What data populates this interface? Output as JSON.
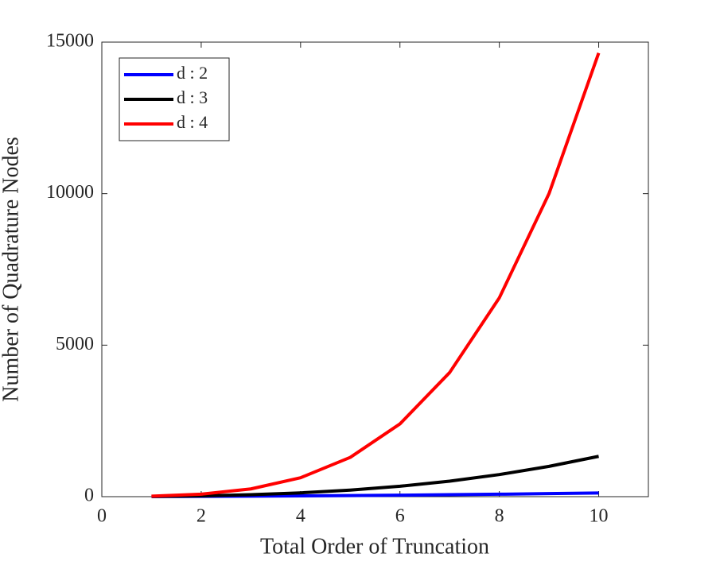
{
  "chart_data": {
    "type": "line",
    "x_label": "Total Order of Truncation",
    "y_label": "Number of Quadrature Nodes",
    "x": [
      1,
      2,
      3,
      4,
      5,
      6,
      7,
      8,
      9,
      10
    ],
    "series": [
      {
        "name": "d : 2",
        "color": "#0000ff",
        "values": [
          4,
          9,
          16,
          25,
          36,
          49,
          64,
          81,
          100,
          121
        ]
      },
      {
        "name": "d : 3",
        "color": "#000000",
        "values": [
          8,
          27,
          64,
          125,
          216,
          343,
          512,
          729,
          1000,
          1331
        ]
      },
      {
        "name": "d : 4",
        "color": "#ff0000",
        "values": [
          16,
          81,
          256,
          625,
          1296,
          2401,
          4096,
          6561,
          10000,
          14641
        ]
      }
    ],
    "xlim": [
      0,
      11
    ],
    "xticks": [
      0,
      2,
      4,
      6,
      8,
      10
    ],
    "ylim": [
      0,
      15000
    ],
    "yticks": [
      0,
      5000,
      10000,
      15000
    ],
    "legend": "upper left",
    "grid": false
  }
}
